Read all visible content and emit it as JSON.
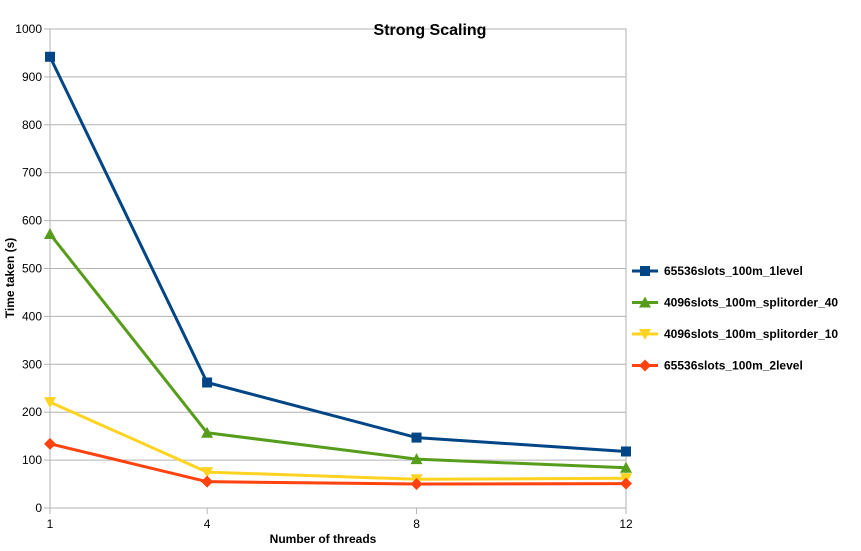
{
  "chart_data": {
    "type": "line",
    "title": "Strong Scaling",
    "xlabel": "Number of threads",
    "ylabel": "Time taken (s)",
    "x": [
      1,
      4,
      8,
      12
    ],
    "x_ticks": [
      "1",
      "4",
      "8",
      "12"
    ],
    "ylim": [
      0,
      1000
    ],
    "y_ticks": [
      "0",
      "100",
      "200",
      "300",
      "400",
      "500",
      "600",
      "700",
      "800",
      "900",
      "1000"
    ],
    "grid": "horizontal",
    "legend_position": "right",
    "series": [
      {
        "name": "65536slots_100m_1level",
        "values": [
          942,
          262,
          147,
          118
        ],
        "color": "#004586",
        "marker": "square"
      },
      {
        "name": "4096slots_100m_splitorder_40",
        "values": [
          572,
          157,
          102,
          84
        ],
        "color": "#579d1c",
        "marker": "triangle-up"
      },
      {
        "name": "4096slots_100m_splitorder_10",
        "values": [
          221,
          75,
          60,
          62
        ],
        "color": "#ffd320",
        "marker": "triangle-down"
      },
      {
        "name": "65536slots_100m_2level",
        "values": [
          134,
          55,
          50,
          51
        ],
        "color": "#ff420e",
        "marker": "diamond"
      }
    ]
  }
}
